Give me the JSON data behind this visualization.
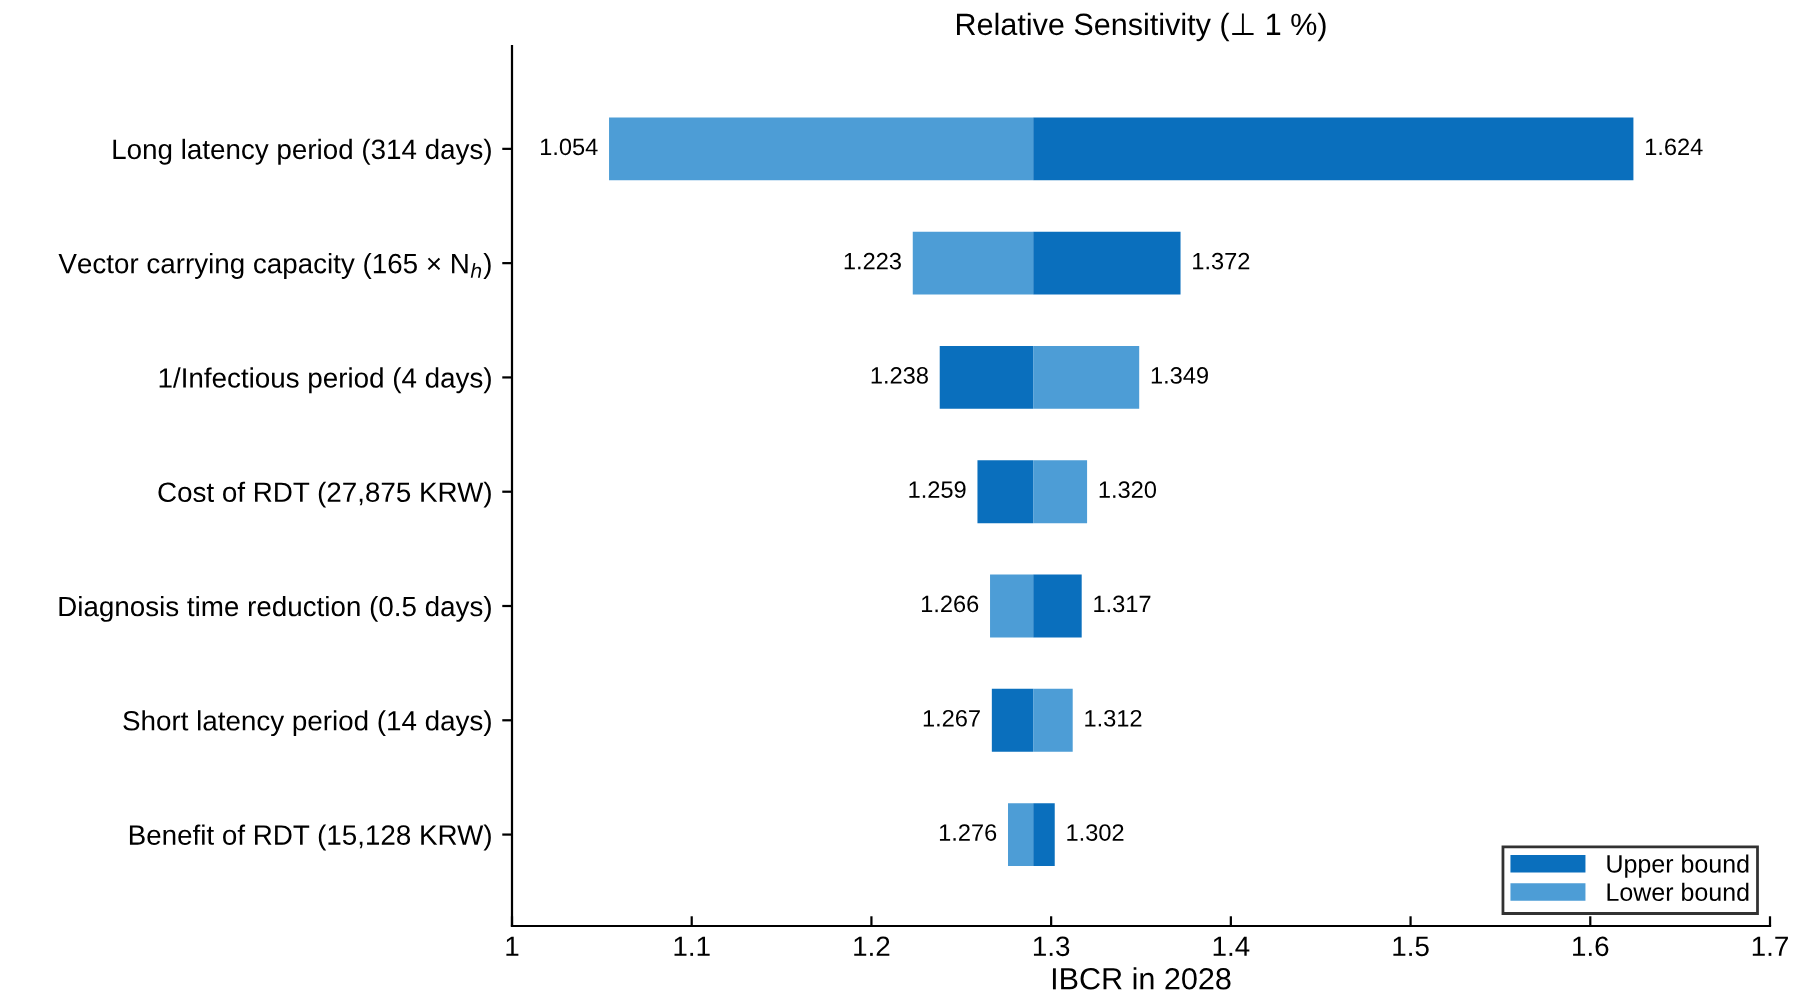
{
  "chart_data": {
    "type": "bar",
    "orientation": "horizontal",
    "title": "Relative Sensitivity (⊥ 1 %)",
    "xlabel": "IBCR in 2028",
    "categories": [
      "Long latency period (314 days)",
      "Vector carrying capacity (165 × N$_{h}$)",
      "1/Infectious period (4 days)",
      "Cost of RDT (27,875 KRW)",
      "Diagnosis time reduction (0.5 days)",
      "Short latency period (14 days)",
      "Benefit of RDT (15,128 KRW)"
    ],
    "series": [
      {
        "name": "Upper bound",
        "color": "#0a6fbd",
        "base": [
          1.29,
          1.29,
          1.29,
          1.29,
          1.29,
          1.29,
          1.29
        ],
        "values": [
          0.334,
          0.082,
          -0.052,
          -0.031,
          0.027,
          -0.023,
          0.012
        ],
        "value_labels": [
          "1.624",
          "1.372",
          "1.238",
          "1.259",
          "1.317",
          "1.267",
          "1.302"
        ]
      },
      {
        "name": "Lower bound",
        "color": "#4d9dd6",
        "base": [
          1.29,
          1.29,
          1.29,
          1.29,
          1.29,
          1.29,
          1.29
        ],
        "values": [
          -0.236,
          -0.067,
          0.059,
          0.03,
          -0.024,
          0.022,
          -0.014
        ],
        "value_labels": [
          "1.054",
          "1.223",
          "1.349",
          "1.320",
          "1.266",
          "1.312",
          "1.276"
        ]
      }
    ],
    "xlim": [
      1,
      1.7
    ],
    "xticks": [
      1,
      1.1,
      1.2,
      1.3,
      1.4,
      1.5,
      1.6,
      1.7
    ],
    "grid": false,
    "legend": "bottom right"
  }
}
